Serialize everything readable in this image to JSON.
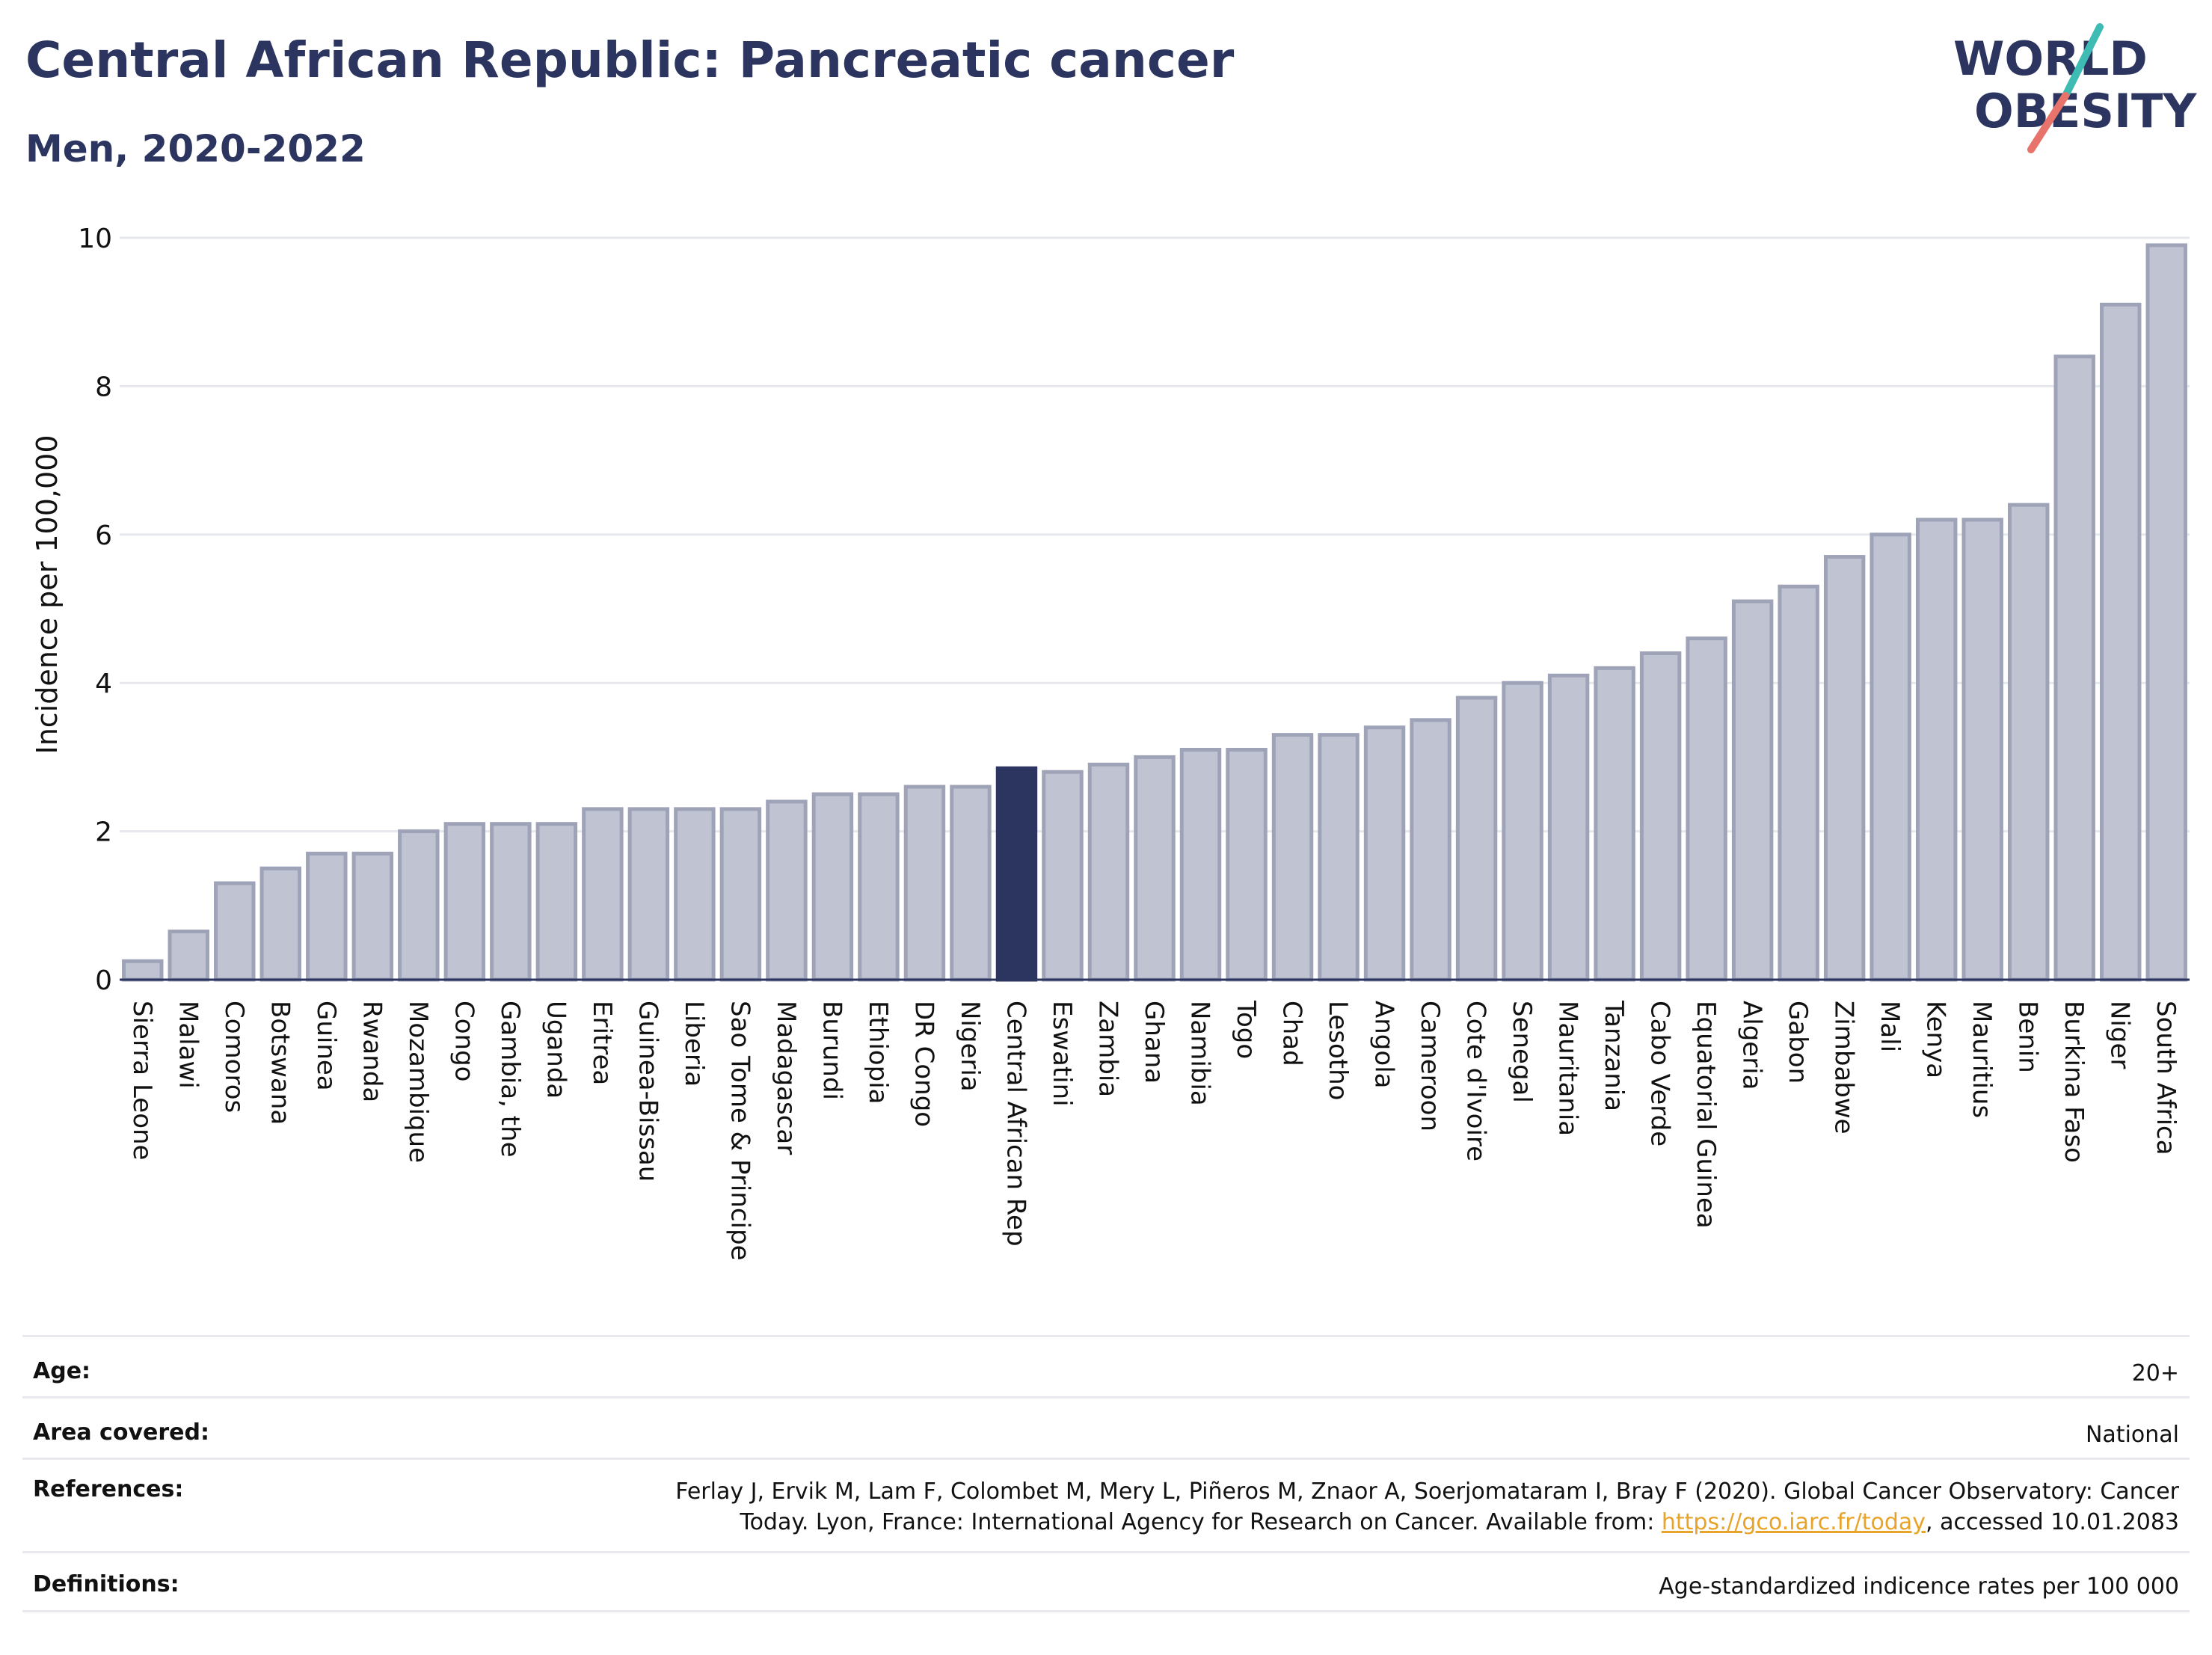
{
  "header": {
    "title": "Central African Republic: Pancreatic cancer",
    "subtitle": "Men, 2020-2022",
    "logo_text_line1": "WORLD",
    "logo_text_line2": "OBESITY"
  },
  "colors": {
    "bar": "#c0c4d2",
    "bar_stroke": "#9ea3b8",
    "highlight": "#2b3560",
    "text": "#2b3560",
    "logo_teal": "#3ebcb4",
    "logo_coral": "#e8736a"
  },
  "chart_data": {
    "type": "bar",
    "ylabel": "Incidence per 100,000",
    "xlabel": "",
    "ylim": [
      0,
      10
    ],
    "yticks": [
      0,
      2,
      4,
      6,
      8,
      10
    ],
    "grid": true,
    "highlight": "Central African Rep",
    "categories": [
      "Sierra Leone",
      "Malawi",
      "Comoros",
      "Botswana",
      "Guinea",
      "Rwanda",
      "Mozambique",
      "Congo",
      "Gambia, the",
      "Uganda",
      "Eritrea",
      "Guinea-Bissau",
      "Liberia",
      "Sao Tome & Principe",
      "Madagascar",
      "Burundi",
      "Ethiopia",
      "DR Congo",
      "Nigeria",
      "Central African Rep",
      "Eswatini",
      "Zambia",
      "Ghana",
      "Namibia",
      "Togo",
      "Chad",
      "Lesotho",
      "Angola",
      "Cameroon",
      "Cote d'Ivoire",
      "Senegal",
      "Mauritania",
      "Tanzania",
      "Cabo Verde",
      "Equatorial Guinea",
      "Algeria",
      "Gabon",
      "Zimbabwe",
      "Mali",
      "Kenya",
      "Mauritius",
      "Benin",
      "Burkina Faso",
      "Niger",
      "South Africa"
    ],
    "values": [
      0.25,
      0.65,
      1.3,
      1.5,
      1.7,
      1.7,
      2.0,
      2.1,
      2.1,
      2.1,
      2.3,
      2.3,
      2.3,
      2.3,
      2.4,
      2.5,
      2.5,
      2.6,
      2.6,
      2.85,
      2.8,
      2.9,
      3.0,
      3.1,
      3.1,
      3.3,
      3.3,
      3.4,
      3.5,
      3.8,
      4.0,
      4.1,
      4.2,
      4.4,
      4.6,
      5.1,
      5.3,
      5.7,
      6.0,
      6.2,
      6.2,
      6.4,
      8.4,
      9.1,
      9.9
    ]
  },
  "info": {
    "age_label": "Age:",
    "age_value": "20+",
    "area_label": "Area covered:",
    "area_value": "National",
    "references_label": "References:",
    "references_line1": "Ferlay J, Ervik M, Lam F, Colombet M, Mery L, Piñeros M, Znaor A, Soerjomataram I, Bray F (2020). Global Cancer Observatory: Cancer",
    "references_line2_prefix": "Today. Lyon, France: International Agency for Research on Cancer. Available from: ",
    "references_link": "https://gco.iarc.fr/today",
    "references_line2_suffix": ", accessed 10.01.2083",
    "definitions_label": "Definitions:",
    "definitions_value": "Age-standardized indicence rates per 100 000"
  }
}
